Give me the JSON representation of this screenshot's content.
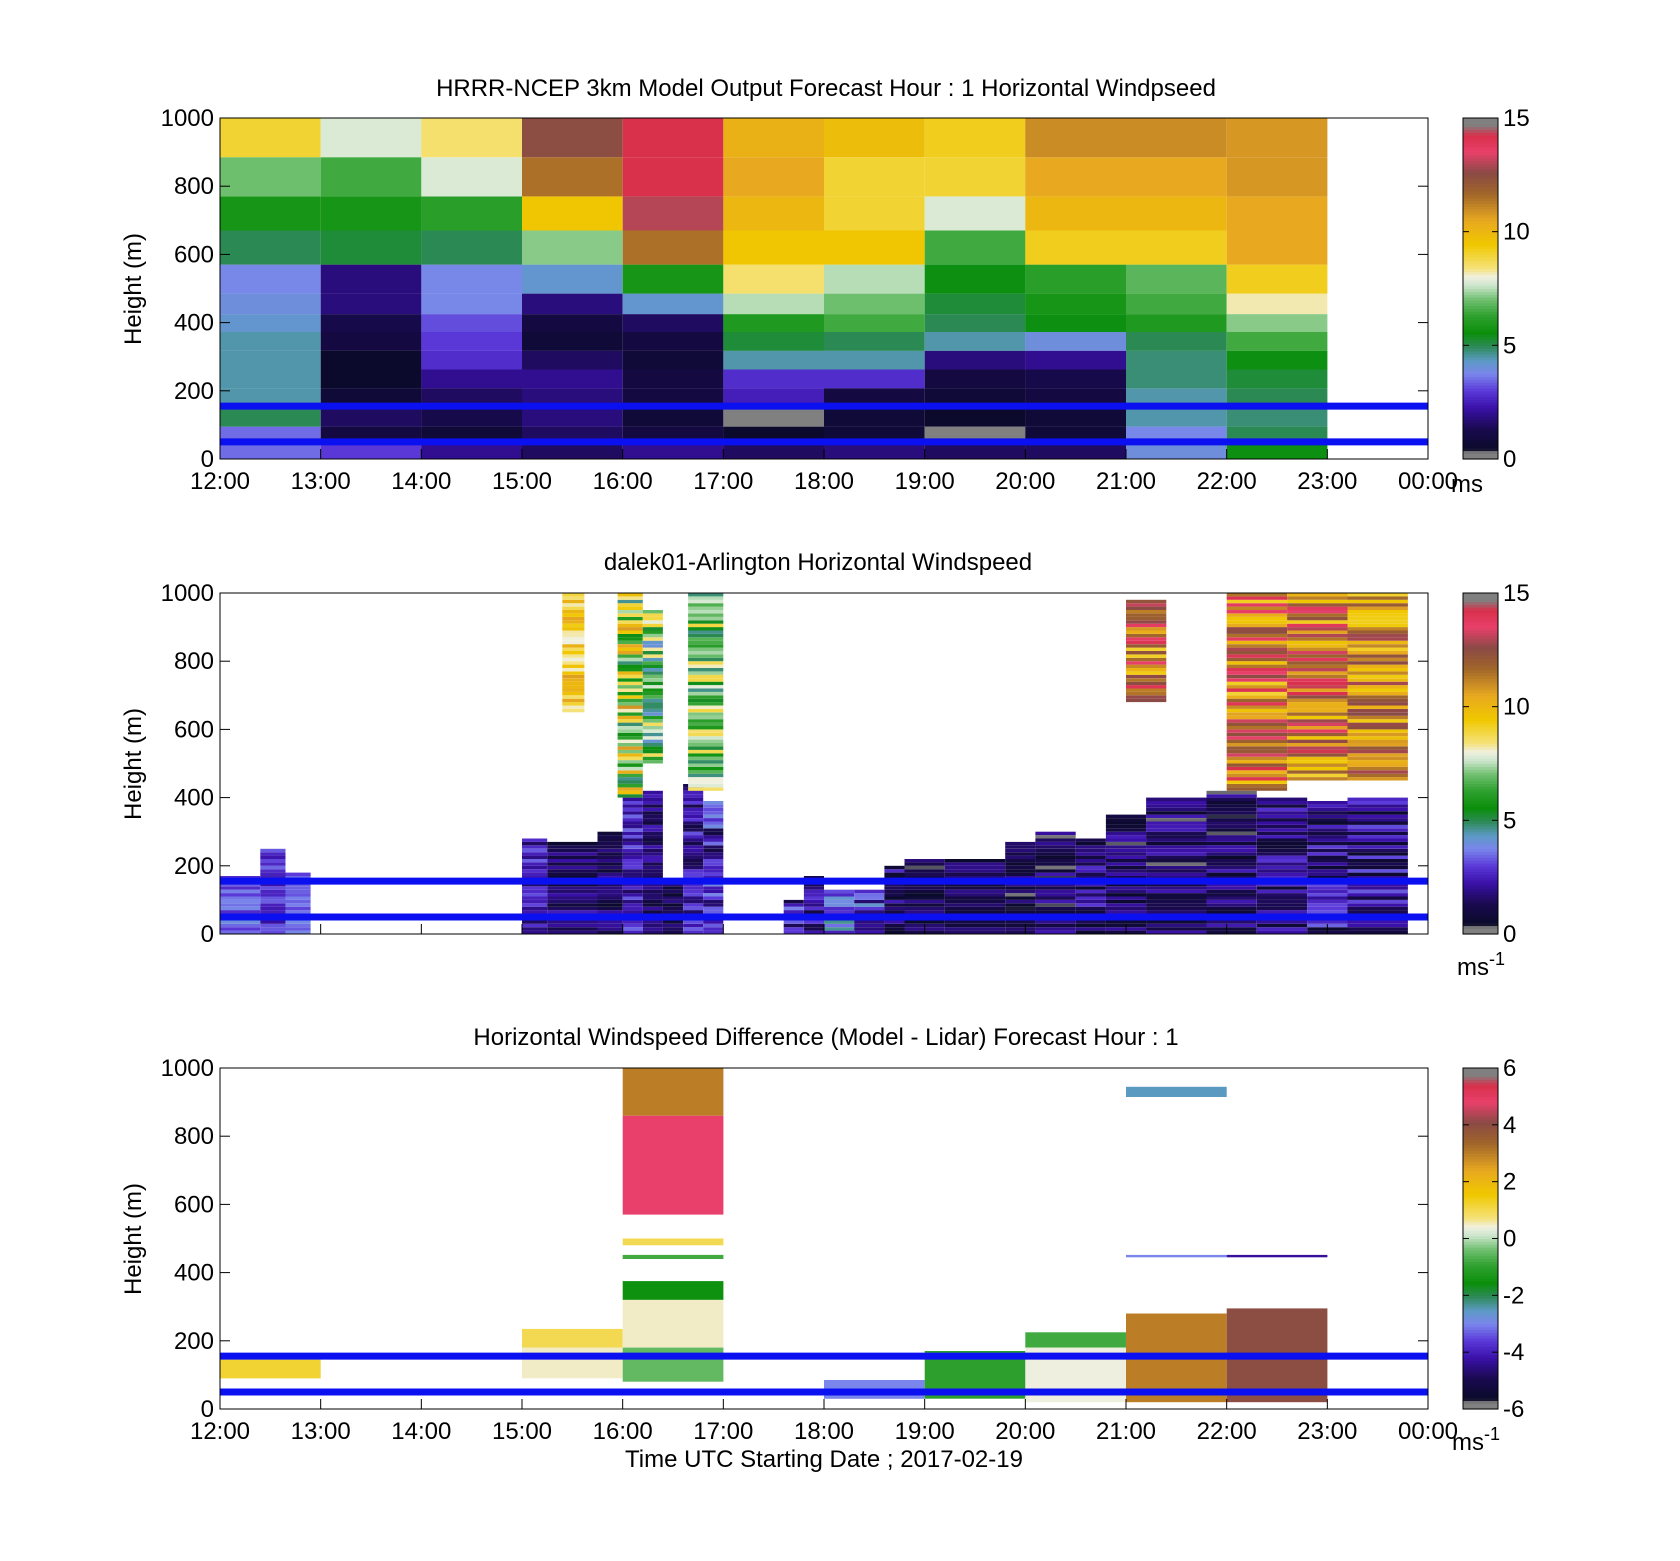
{
  "figure": {
    "xlabel": "Time UTC  Starting Date ; 2017-02-19"
  },
  "chart_data": [
    {
      "type": "heatmap",
      "panel": "model",
      "title": "HRRR-NCEP 3km Model Output   Forecast Hour : 1 Horizontal Windpseed",
      "ylabel": "Height (m)",
      "xlabel": "",
      "x_ticks": [
        "12:00",
        "13:00",
        "14:00",
        "15:00",
        "16:00",
        "17:00",
        "18:00",
        "19:00",
        "20:00",
        "21:00",
        "22:00",
        "23:00",
        "00:00"
      ],
      "y_ticks": [
        "0",
        "200",
        "400",
        "600",
        "800",
        "1000"
      ],
      "ylim": [
        0,
        1000
      ],
      "colorbar": {
        "min": 0,
        "max": 15,
        "ticks": [
          "0",
          "5",
          "10",
          "15"
        ],
        "unit": "ms"
      },
      "reference_lines": [
        50,
        155
      ],
      "hours": [
        "12:00",
        "13:00",
        "14:00",
        "15:00",
        "16:00",
        "17:00",
        "18:00",
        "19:00",
        "20:00",
        "21:00",
        "22:00"
      ],
      "levels": [
        25,
        60,
        130,
        180,
        235,
        290,
        345,
        400,
        450,
        520,
        620,
        720,
        820,
        950
      ],
      "values": [
        [
          3.5,
          3.0,
          2.0,
          1.5,
          2.0,
          1.5,
          1.8,
          1.5,
          1.5,
          4.0,
          5.5
        ],
        [
          3.5,
          1.0,
          0.8,
          1.5,
          1.0,
          0.5,
          0.8,
          0.3,
          0.8,
          3.8,
          5.0
        ],
        [
          5.0,
          1.5,
          1.2,
          1.8,
          0.8,
          0.3,
          0.8,
          0.5,
          0.8,
          4.5,
          4.8
        ],
        [
          4.5,
          0.8,
          1.5,
          1.8,
          1.0,
          2.5,
          1.0,
          0.8,
          1.0,
          4.5,
          5.0
        ],
        [
          4.5,
          0.5,
          2.0,
          2.0,
          1.0,
          2.8,
          2.8,
          1.0,
          1.2,
          4.8,
          5.2
        ],
        [
          4.5,
          0.5,
          2.8,
          1.5,
          0.8,
          4.5,
          4.5,
          1.8,
          2.0,
          4.8,
          5.5
        ],
        [
          4.5,
          1.0,
          3.0,
          0.8,
          1.0,
          5.2,
          5.0,
          4.5,
          4.0,
          5.0,
          6.5
        ],
        [
          4.2,
          1.2,
          3.2,
          1.0,
          1.5,
          6.0,
          6.5,
          5.0,
          5.5,
          6.0,
          7.2
        ],
        [
          4.0,
          1.8,
          3.8,
          1.8,
          4.2,
          7.5,
          7.0,
          5.2,
          5.8,
          6.5,
          8.2
        ],
        [
          3.8,
          1.8,
          3.8,
          4.2,
          5.8,
          8.5,
          7.5,
          5.5,
          6.2,
          6.8,
          9.2
        ],
        [
          5.0,
          5.2,
          5.0,
          7.2,
          11.5,
          9.5,
          9.5,
          6.5,
          9.2,
          9.2,
          10.5
        ],
        [
          5.8,
          5.8,
          6.2,
          9.5,
          13.0,
          10.0,
          9.0,
          7.8,
          10.0,
          10.0,
          10.5
        ],
        [
          7.0,
          6.5,
          7.8,
          11.5,
          14.2,
          10.5,
          9.0,
          9.0,
          10.5,
          10.5,
          10.8
        ],
        [
          9.0,
          7.8,
          8.5,
          12.5,
          14.2,
          10.2,
          9.8,
          9.2,
          11.0,
          11.0,
          10.8
        ]
      ]
    },
    {
      "type": "heatmap",
      "panel": "lidar",
      "title": "dalek01-Arlington  Horizontal Windspeed",
      "ylabel": "Height (m)",
      "xlabel": "",
      "x_ticks": [],
      "y_ticks": [
        "0",
        "200",
        "400",
        "600",
        "800",
        "1000"
      ],
      "ylim": [
        0,
        1000
      ],
      "colorbar": {
        "min": 0,
        "max": 15,
        "ticks": [
          "0",
          "5",
          "10",
          "15"
        ],
        "unit": "ms",
        "unit_exponent": "-1"
      },
      "reference_lines": [
        50,
        155
      ],
      "description_note": "",
      "columns": [
        {
          "start": 12.0,
          "end": 12.4,
          "top": 170,
          "low": 2.5,
          "high": 4.0
        },
        {
          "start": 12.4,
          "end": 12.65,
          "top": 250,
          "low": 2.0,
          "high": 3.5
        },
        {
          "start": 12.65,
          "end": 12.9,
          "top": 180,
          "low": 3.0,
          "high": 4.0
        },
        {
          "start": 15.0,
          "end": 15.25,
          "top": 280,
          "low": 1.5,
          "high": 3.5
        },
        {
          "start": 15.25,
          "end": 15.75,
          "top": 270,
          "low": 0.5,
          "high": 2.5
        },
        {
          "start": 15.75,
          "end": 16.0,
          "top": 300,
          "low": 0.5,
          "high": 2.5
        },
        {
          "start": 16.0,
          "end": 16.2,
          "top": 400,
          "low": 1.5,
          "high": 3.5
        },
        {
          "start": 16.2,
          "end": 16.4,
          "top": 420,
          "low": 0.8,
          "high": 2.5
        },
        {
          "start": 16.4,
          "end": 16.6,
          "top": 150,
          "low": 0.5,
          "high": 2.0
        },
        {
          "start": 16.6,
          "end": 16.8,
          "top": 440,
          "low": 1.0,
          "high": 3.5
        },
        {
          "start": 16.8,
          "end": 17.0,
          "top": 390,
          "low": 1.0,
          "high": 4.0
        },
        {
          "start": 17.6,
          "end": 17.8,
          "top": 100,
          "low": 1.0,
          "high": 4.0
        },
        {
          "start": 17.8,
          "end": 18.0,
          "top": 170,
          "low": 1.0,
          "high": 3.0
        },
        {
          "start": 18.0,
          "end": 18.3,
          "top": 130,
          "low": 2.5,
          "high": 5.0
        },
        {
          "start": 18.3,
          "end": 18.6,
          "top": 130,
          "low": 1.5,
          "high": 4.5
        },
        {
          "start": 18.6,
          "end": 18.8,
          "top": 200,
          "low": 0.5,
          "high": 3.0
        },
        {
          "start": 18.8,
          "end": 19.2,
          "top": 220,
          "low": 0.3,
          "high": 2.0
        },
        {
          "start": 19.2,
          "end": 19.8,
          "top": 220,
          "low": 0.3,
          "high": 2.0
        },
        {
          "start": 19.8,
          "end": 20.1,
          "top": 270,
          "low": 0.3,
          "high": 2.2
        },
        {
          "start": 20.1,
          "end": 20.5,
          "top": 300,
          "low": 0.3,
          "high": 2.5
        },
        {
          "start": 20.5,
          "end": 20.8,
          "top": 280,
          "low": 0.5,
          "high": 3.0
        },
        {
          "start": 20.8,
          "end": 21.2,
          "top": 350,
          "low": 0.3,
          "high": 2.5
        },
        {
          "start": 21.2,
          "end": 21.8,
          "top": 400,
          "low": 0.3,
          "high": 2.5
        },
        {
          "start": 21.8,
          "end": 22.3,
          "top": 420,
          "low": 0.2,
          "high": 2.5
        },
        {
          "start": 22.3,
          "end": 22.8,
          "top": 400,
          "low": 0.5,
          "high": 3.0
        },
        {
          "start": 22.8,
          "end": 23.2,
          "top": 390,
          "low": 0.5,
          "high": 3.5
        },
        {
          "start": 23.2,
          "end": 23.8,
          "top": 400,
          "low": 0.5,
          "high": 3.5
        }
      ],
      "upper_columns": [
        {
          "start": 15.4,
          "end": 15.62,
          "bottom": 650,
          "top": 1000,
          "low": 8.0,
          "high": 11.0
        },
        {
          "start": 15.95,
          "end": 16.2,
          "bottom": 400,
          "top": 1000,
          "low": 4.5,
          "high": 11.0
        },
        {
          "start": 16.2,
          "end": 16.4,
          "bottom": 500,
          "top": 950,
          "low": 4.0,
          "high": 9.0
        },
        {
          "start": 16.65,
          "end": 17.0,
          "bottom": 420,
          "top": 1000,
          "low": 4.5,
          "high": 9.0
        },
        {
          "start": 21.0,
          "end": 21.4,
          "bottom": 680,
          "top": 980,
          "low": 9.0,
          "high": 14.5
        },
        {
          "start": 22.0,
          "end": 22.6,
          "bottom": 420,
          "top": 1000,
          "low": 9.0,
          "high": 14.5
        },
        {
          "start": 22.6,
          "end": 23.2,
          "bottom": 450,
          "top": 1000,
          "low": 9.0,
          "high": 14.5
        },
        {
          "start": 23.2,
          "end": 23.8,
          "bottom": 450,
          "top": 1000,
          "low": 9.0,
          "high": 13.0
        }
      ]
    },
    {
      "type": "heatmap",
      "panel": "difference",
      "title": "Horizontal Windspeed Difference (Model - Lidar) Forecast Hour : 1",
      "ylabel": "Height (m)",
      "xlabel": "Time UTC  Starting Date ; 2017-02-19",
      "x_ticks": [
        "12:00",
        "13:00",
        "14:00",
        "15:00",
        "16:00",
        "17:00",
        "18:00",
        "19:00",
        "20:00",
        "21:00",
        "22:00",
        "23:00",
        "00:00"
      ],
      "y_ticks": [
        "0",
        "200",
        "400",
        "600",
        "800",
        "1000"
      ],
      "ylim": [
        0,
        1000
      ],
      "colorbar": {
        "min": -6,
        "max": 6,
        "ticks": [
          "-6",
          "-4",
          "-2",
          "0",
          "2",
          "4",
          "6"
        ],
        "unit": "ms",
        "unit_exponent": "-1"
      },
      "reference_lines": [
        50,
        155
      ],
      "blocks": [
        {
          "start": 12.0,
          "end": 13.0,
          "bottom": 90,
          "top": 145,
          "value": 1.2
        },
        {
          "start": 15.0,
          "end": 16.0,
          "bottom": 180,
          "top": 235,
          "value": 1.0
        },
        {
          "start": 15.0,
          "end": 16.0,
          "bottom": 90,
          "top": 180,
          "value": 0.5
        },
        {
          "start": 16.0,
          "end": 17.0,
          "bottom": 860,
          "top": 1000,
          "value": 3.0
        },
        {
          "start": 16.0,
          "end": 17.0,
          "bottom": 570,
          "top": 860,
          "value": 4.8
        },
        {
          "start": 16.0,
          "end": 17.0,
          "bottom": 480,
          "top": 500,
          "value": 1.0
        },
        {
          "start": 16.0,
          "end": 17.0,
          "bottom": 440,
          "top": 452,
          "value": -0.8
        },
        {
          "start": 16.0,
          "end": 17.0,
          "bottom": 320,
          "top": 375,
          "value": -1.5
        },
        {
          "start": 16.0,
          "end": 17.0,
          "bottom": 180,
          "top": 320,
          "value": 0.5
        },
        {
          "start": 16.0,
          "end": 17.0,
          "bottom": 80,
          "top": 180,
          "value": -0.5
        },
        {
          "start": 18.0,
          "end": 19.0,
          "bottom": 30,
          "top": 85,
          "value": -3.0
        },
        {
          "start": 19.0,
          "end": 20.0,
          "bottom": 30,
          "top": 170,
          "value": -1.0
        },
        {
          "start": 20.0,
          "end": 21.0,
          "bottom": 180,
          "top": 225,
          "value": -0.8
        },
        {
          "start": 20.0,
          "end": 21.0,
          "bottom": 20,
          "top": 180,
          "value": 0.4
        },
        {
          "start": 21.0,
          "end": 22.0,
          "bottom": 20,
          "top": 280,
          "value": 3.0
        },
        {
          "start": 21.0,
          "end": 22.0,
          "bottom": 445,
          "top": 452,
          "value": -3.0
        },
        {
          "start": 21.0,
          "end": 22.0,
          "bottom": 915,
          "top": 945,
          "value": -2.5
        },
        {
          "start": 22.0,
          "end": 23.0,
          "bottom": 20,
          "top": 295,
          "value": 4.0
        },
        {
          "start": 22.0,
          "end": 23.0,
          "bottom": 445,
          "top": 452,
          "value": -4.3
        }
      ]
    }
  ]
}
